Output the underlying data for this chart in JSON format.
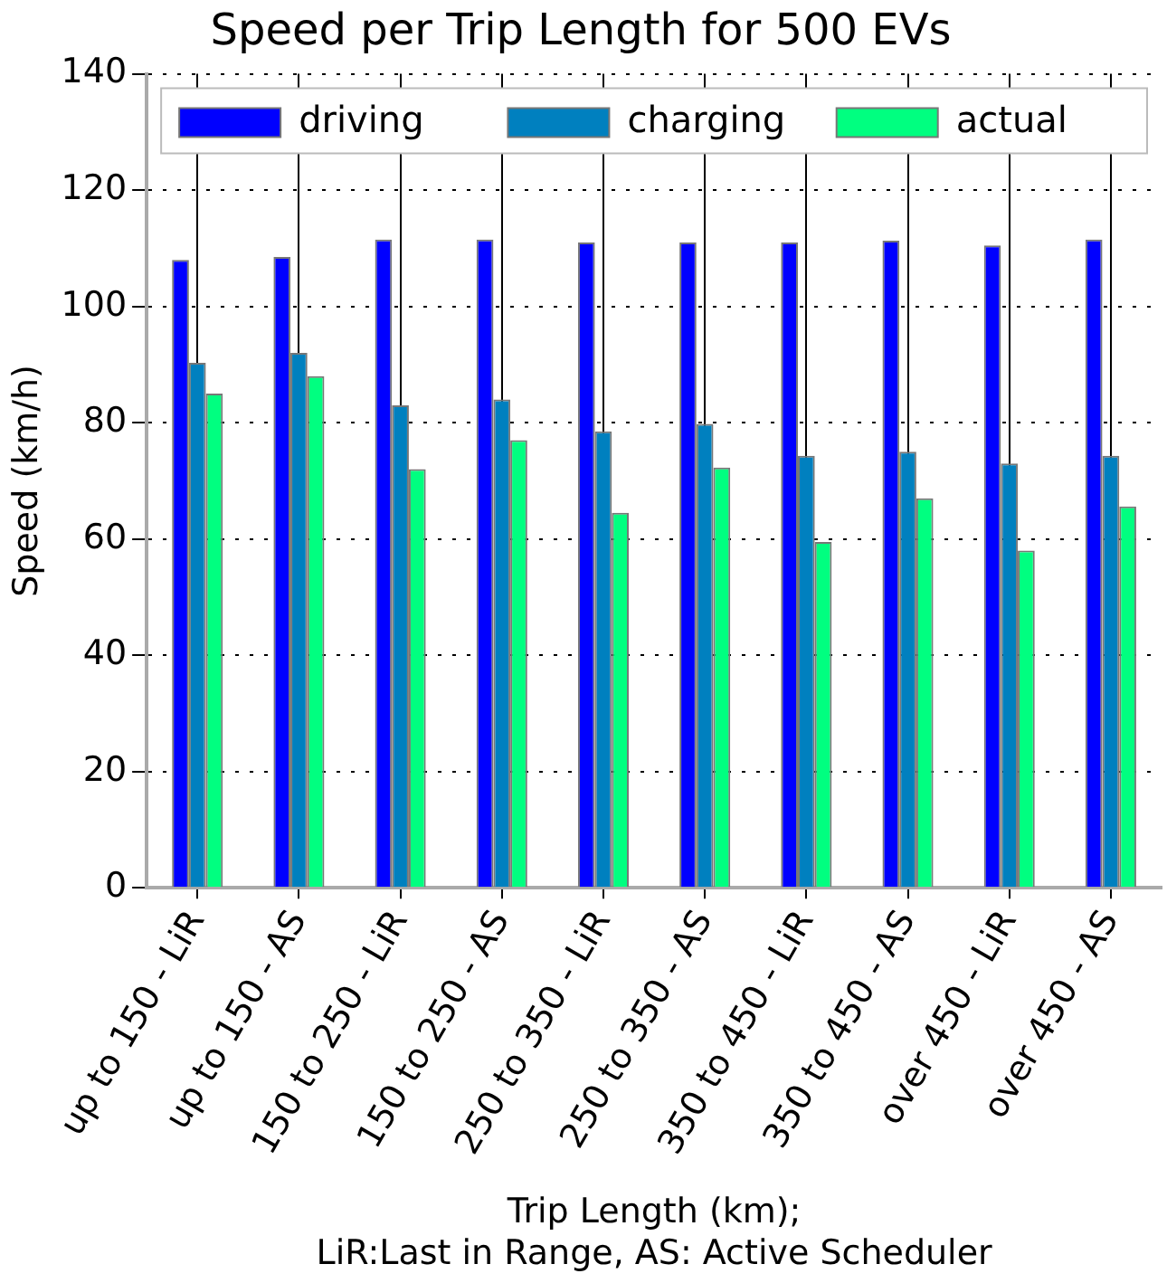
{
  "chart_data": {
    "type": "bar",
    "title": "Speed per Trip Length for 500 EVs",
    "xlabel": "Trip Length (km);\nLiR:Last in Range, AS: Active Scheduler",
    "ylabel": "Speed (km/h)",
    "categories": [
      "up to 150 - LiR",
      "up to 150 - AS",
      "150 to 250 - LiR",
      "150 to 250 - AS",
      "250 to 350 - LiR",
      "250 to 350 - AS",
      "350 to 450 - LiR",
      "350 to 450 - AS",
      "over 450 - LiR",
      "over 450 - AS"
    ],
    "series": [
      {
        "name": "driving",
        "color": "#0000ff",
        "values": [
          108,
          108.5,
          111.5,
          111.5,
          111,
          111,
          111,
          111.3,
          110.5,
          111.5
        ]
      },
      {
        "name": "charging",
        "color": "#0080bf",
        "values": [
          90.3,
          92,
          83,
          84,
          78.5,
          79.8,
          74.3,
          75,
          73,
          74.3
        ]
      },
      {
        "name": "actual",
        "color": "#00ff80",
        "values": [
          85,
          88,
          72,
          77,
          64.5,
          72.3,
          59.5,
          67,
          58,
          65.6
        ]
      }
    ],
    "ylim": [
      0,
      140
    ],
    "yticks": [
      0,
      20,
      40,
      60,
      80,
      100,
      120,
      140
    ],
    "grid": true,
    "legend": "top"
  }
}
